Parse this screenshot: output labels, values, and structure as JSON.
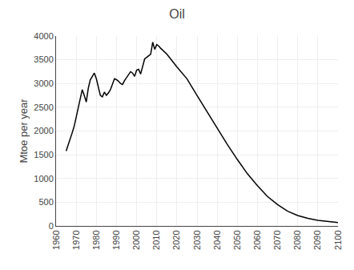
{
  "chart_data": {
    "type": "line",
    "title": "Oil",
    "ylabel": "Mtoe per year",
    "color": "#000000",
    "grid": true,
    "x": [
      1965,
      1966,
      1967,
      1968,
      1969,
      1970,
      1971,
      1972,
      1973,
      1974,
      1975,
      1976,
      1977,
      1978,
      1979,
      1980,
      1981,
      1982,
      1983,
      1984,
      1985,
      1986,
      1987,
      1988,
      1989,
      1990,
      1991,
      1992,
      1993,
      1994,
      1995,
      1996,
      1997,
      1998,
      1999,
      2000,
      2001,
      2002,
      2003,
      2004,
      2005,
      2006,
      2007,
      2008,
      2009,
      2010,
      2011,
      2012,
      2015,
      2020,
      2025,
      2030,
      2035,
      2040,
      2045,
      2050,
      2055,
      2060,
      2065,
      2070,
      2075,
      2080,
      2085,
      2090,
      2095,
      2100
    ],
    "values": [
      1580,
      1700,
      1820,
      1960,
      2100,
      2280,
      2480,
      2680,
      2870,
      2750,
      2610,
      2900,
      3080,
      3150,
      3220,
      3100,
      2920,
      2750,
      2720,
      2820,
      2750,
      2800,
      2870,
      2980,
      3100,
      3080,
      3050,
      3000,
      2980,
      3060,
      3130,
      3200,
      3250,
      3220,
      3150,
      3280,
      3300,
      3200,
      3350,
      3520,
      3550,
      3580,
      3620,
      3870,
      3720,
      3820,
      3790,
      3740,
      3620,
      3350,
      3100,
      2750,
      2400,
      2050,
      1720,
      1400,
      1100,
      850,
      620,
      450,
      310,
      220,
      160,
      120,
      90,
      70
    ],
    "xlim": [
      1960,
      2100
    ],
    "ylim": [
      0,
      4000
    ],
    "xticks": [
      1960,
      1970,
      1980,
      1990,
      2000,
      2010,
      2020,
      2030,
      2040,
      2050,
      2060,
      2070,
      2080,
      2090,
      2100
    ],
    "yticks": [
      0,
      500,
      1000,
      1500,
      2000,
      2500,
      3000,
      3500,
      4000
    ]
  }
}
